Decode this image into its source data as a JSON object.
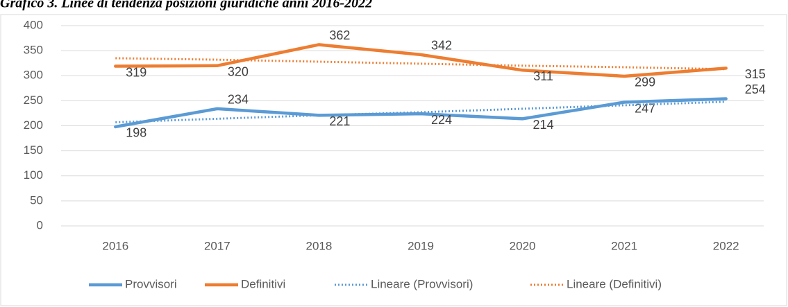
{
  "chart_data": {
    "type": "line",
    "title": "Grafico 3. Linee di tendenza posizioni giuridiche anni 2016-2022",
    "categories": [
      "2016",
      "2017",
      "2018",
      "2019",
      "2020",
      "2021",
      "2022"
    ],
    "series": [
      {
        "name": "Provvisori",
        "color": "#5b9bd5",
        "style": "solid",
        "labels": true,
        "values": [
          198,
          234,
          221,
          224,
          214,
          247,
          254
        ]
      },
      {
        "name": "Definitivi",
        "color": "#ed7d31",
        "style": "solid",
        "labels": true,
        "values": [
          319,
          320,
          362,
          342,
          311,
          299,
          315
        ]
      },
      {
        "name": "Lineare (Provvisori)",
        "color": "#5b9bd5",
        "style": "dotted",
        "labels": false,
        "values": [
          207,
          214,
          221,
          227,
          234,
          241,
          248
        ]
      },
      {
        "name": "Lineare (Definitivi)",
        "color": "#ed7d31",
        "style": "dotted",
        "labels": false,
        "values": [
          335,
          332,
          328,
          324,
          320,
          317,
          313
        ]
      }
    ],
    "ylim": [
      0,
      400
    ],
    "yticks": [
      0,
      50,
      100,
      150,
      200,
      250,
      300,
      350,
      400
    ],
    "grid": true,
    "legend": "bottom"
  }
}
